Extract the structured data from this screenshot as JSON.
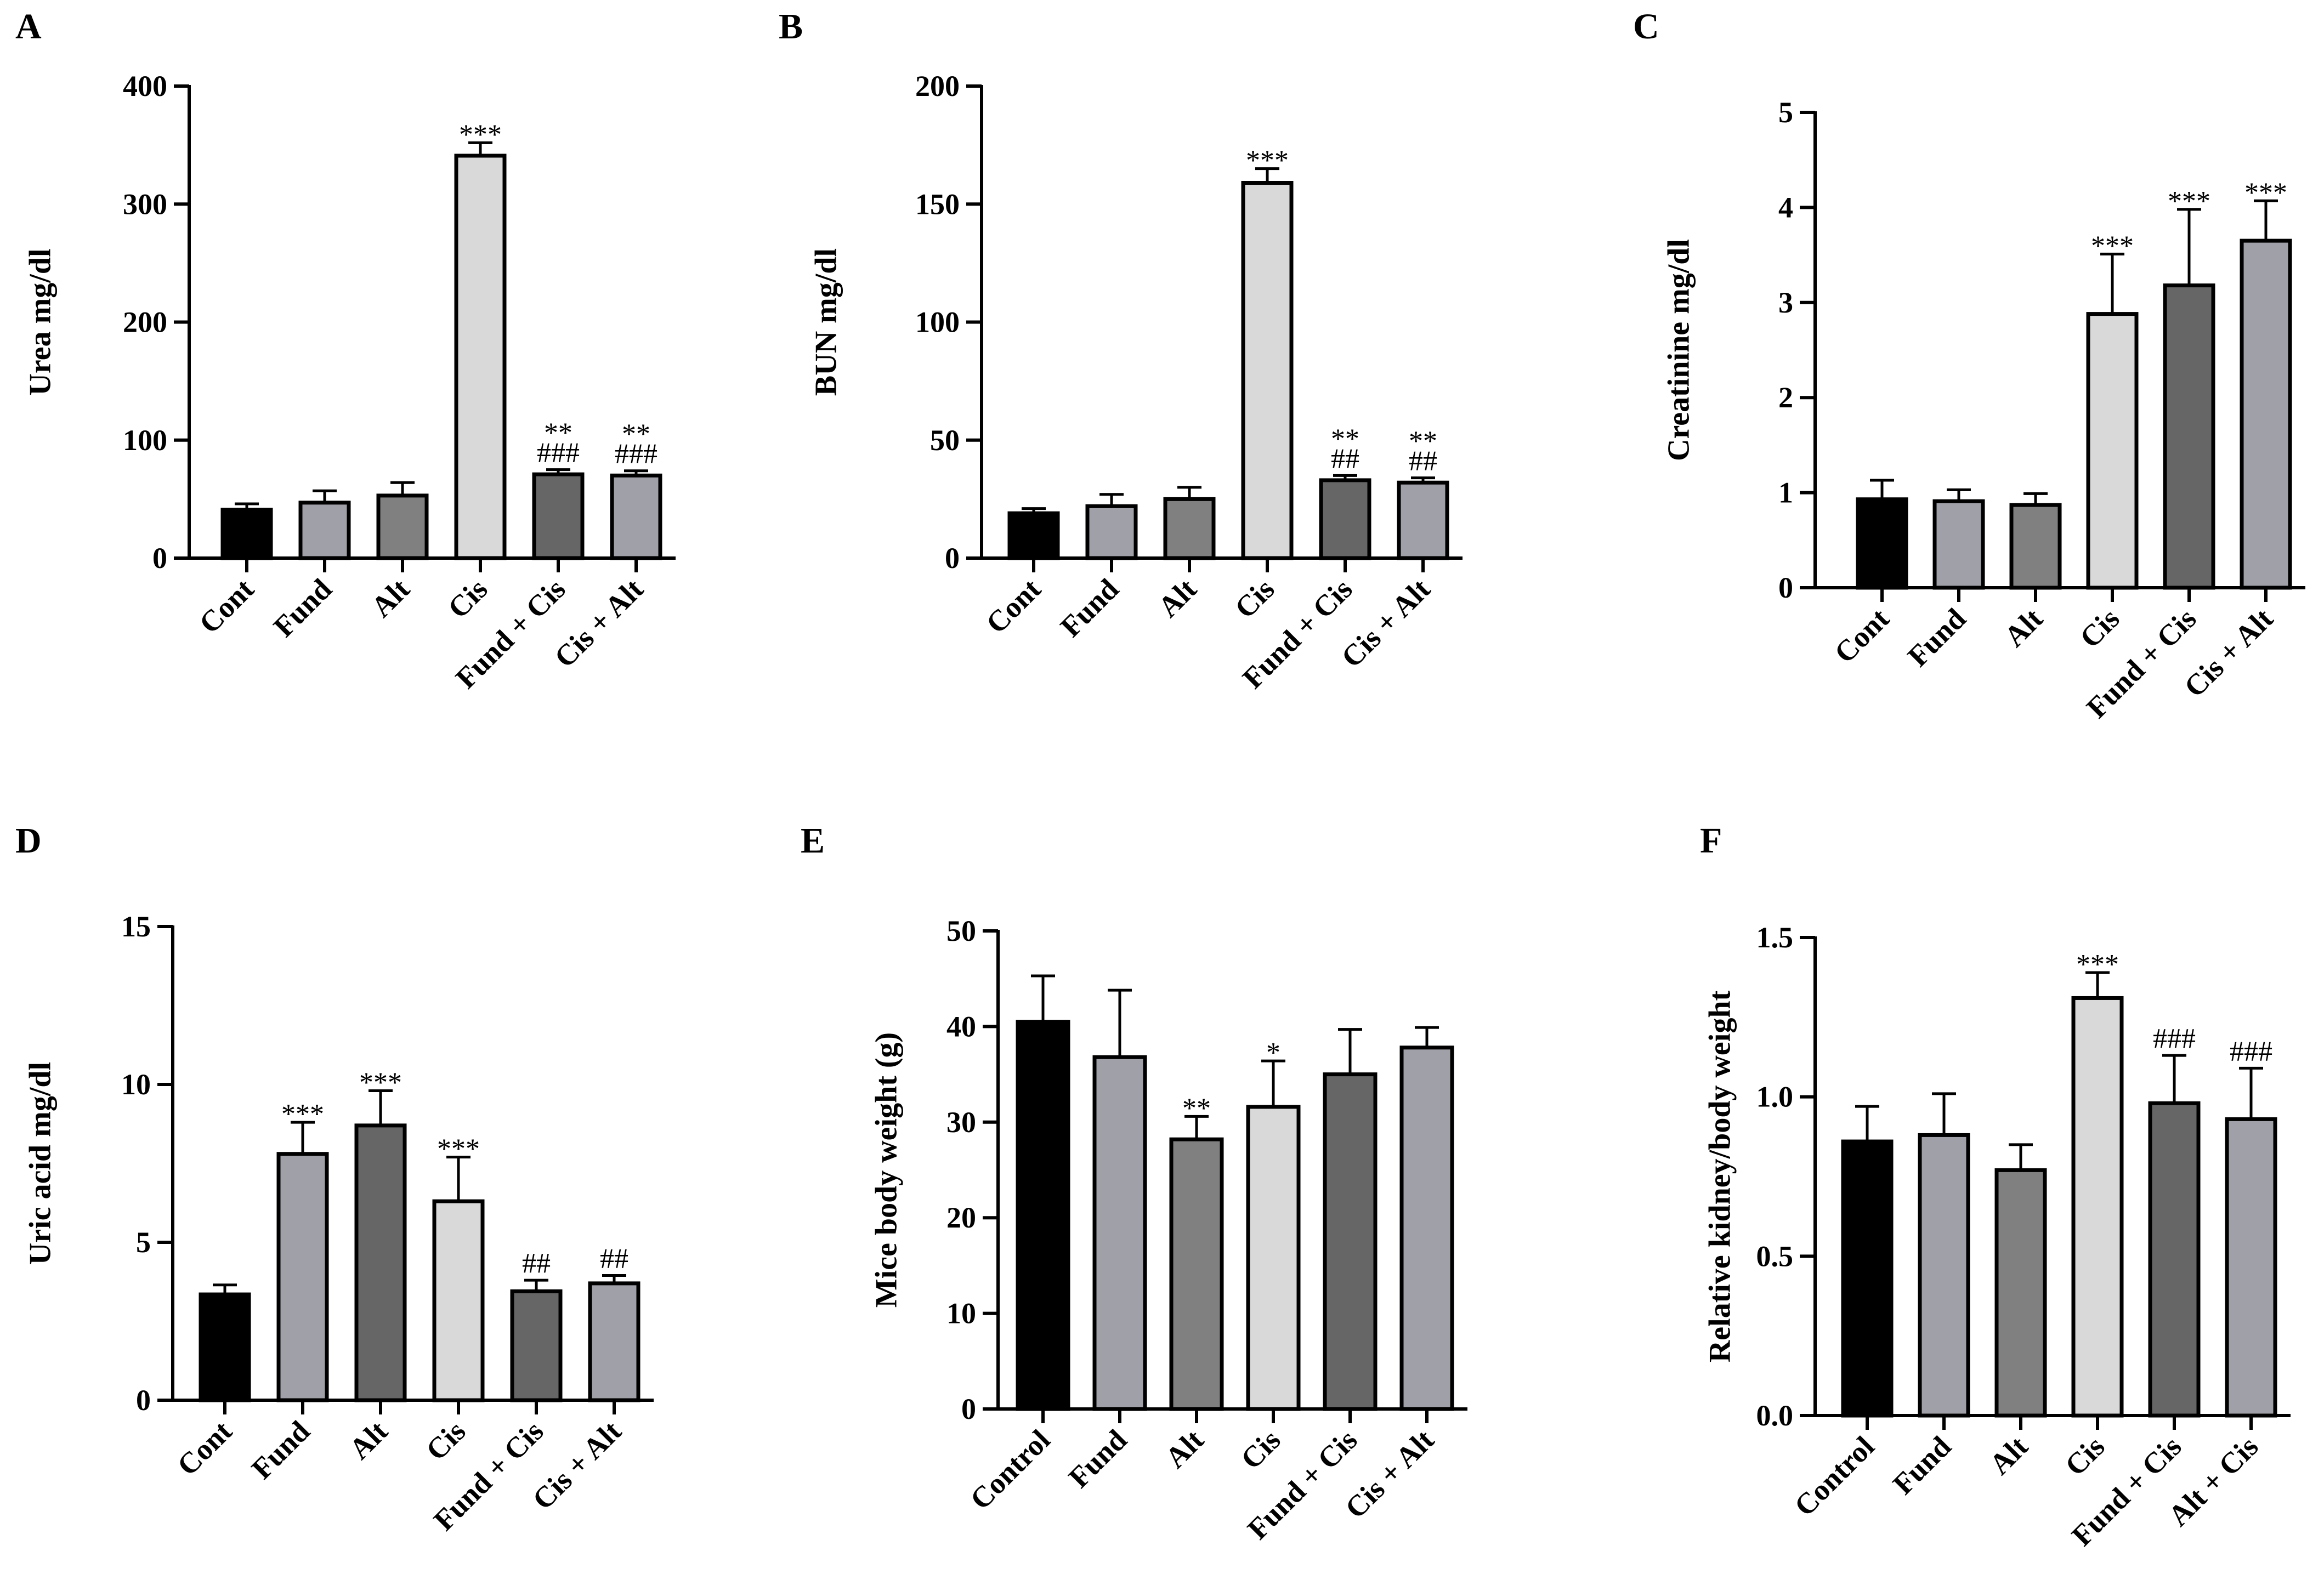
{
  "chart_data": [
    {
      "panel": "A",
      "type": "bar",
      "ylabel": "Urea mg/dl",
      "categories": [
        "Cont",
        "Fund",
        "Alt",
        "Cis",
        "Fund + Cis",
        "Cis + Alt"
      ],
      "values": [
        41,
        47,
        53,
        341,
        71,
        70
      ],
      "errors": [
        5,
        10,
        11,
        11,
        4,
        4
      ],
      "annotations": [
        [
          "",
          ""
        ],
        [
          "",
          ""
        ],
        [
          "",
          ""
        ],
        [
          "***",
          ""
        ],
        [
          "**",
          "###"
        ],
        [
          "**",
          "###"
        ]
      ],
      "ylim": [
        0,
        400
      ],
      "yticks": [
        "0",
        "100",
        "200",
        "300",
        "400"
      ],
      "colors": [
        "#000000",
        "#a0a0a8",
        "#808080",
        "#d9d9d9",
        "#666666",
        "#a0a0a8"
      ]
    },
    {
      "panel": "B",
      "type": "bar",
      "ylabel": "BUN mg/dl",
      "categories": [
        "Cont",
        "Fund",
        "Alt",
        "Cis",
        "Fund + Cis",
        "Cis + Alt"
      ],
      "values": [
        19,
        22,
        25,
        159,
        33,
        32
      ],
      "errors": [
        2,
        5,
        5,
        6,
        2,
        2
      ],
      "annotations": [
        [
          "",
          ""
        ],
        [
          "",
          ""
        ],
        [
          "",
          ""
        ],
        [
          "***",
          ""
        ],
        [
          "**",
          "##"
        ],
        [
          "**",
          "##"
        ]
      ],
      "ylim": [
        0,
        200
      ],
      "yticks": [
        "0",
        "50",
        "100",
        "150",
        "200"
      ],
      "colors": [
        "#000000",
        "#a0a0a8",
        "#808080",
        "#d9d9d9",
        "#666666",
        "#a0a0a8"
      ]
    },
    {
      "panel": "C",
      "type": "bar",
      "ylabel": "Creatinine mg/dl",
      "categories": [
        "Cont",
        "Fund",
        "Alt",
        "Cis",
        "Fund + Cis",
        "Cis + Alt"
      ],
      "values": [
        0.93,
        0.91,
        0.87,
        2.88,
        3.18,
        3.65
      ],
      "errors": [
        0.2,
        0.12,
        0.12,
        0.63,
        0.8,
        0.42
      ],
      "annotations": [
        [
          "",
          ""
        ],
        [
          "",
          ""
        ],
        [
          "",
          ""
        ],
        [
          "***",
          ""
        ],
        [
          "***",
          ""
        ],
        [
          "***",
          ""
        ]
      ],
      "ylim": [
        0,
        5
      ],
      "yticks": [
        "0",
        "1",
        "2",
        "3",
        "4",
        "5"
      ],
      "colors": [
        "#000000",
        "#a0a0a8",
        "#808080",
        "#d9d9d9",
        "#666666",
        "#a0a0a8"
      ]
    },
    {
      "panel": "D",
      "type": "bar",
      "ylabel": "Uric acid mg/dl",
      "categories": [
        "Cont",
        "Fund",
        "Alt",
        "Cis",
        "Fund + Cis",
        "Cis + Alt"
      ],
      "values": [
        3.35,
        7.8,
        8.7,
        6.3,
        3.45,
        3.7
      ],
      "errors": [
        0.3,
        1.0,
        1.1,
        1.4,
        0.35,
        0.25
      ],
      "annotations": [
        [
          "",
          ""
        ],
        [
          "***",
          ""
        ],
        [
          "***",
          ""
        ],
        [
          "***",
          ""
        ],
        [
          "##",
          ""
        ],
        [
          "##",
          ""
        ]
      ],
      "ylim": [
        0,
        15
      ],
      "yticks": [
        "0",
        "5",
        "10",
        "15"
      ],
      "colors": [
        "#000000",
        "#a0a0a8",
        "#666666",
        "#d9d9d9",
        "#666666",
        "#a0a0a8"
      ]
    },
    {
      "panel": "E",
      "type": "bar",
      "ylabel": "Mice body weight (g)",
      "categories": [
        "Control",
        "Fund",
        "Alt",
        "Cis",
        "Fund + Cis",
        "Cis + Alt"
      ],
      "values": [
        40.5,
        36.8,
        28.2,
        31.6,
        35,
        37.8
      ],
      "errors": [
        4.8,
        7,
        2.4,
        4.8,
        4.7,
        2.1
      ],
      "annotations": [
        [
          "",
          ""
        ],
        [
          "",
          ""
        ],
        [
          "**",
          ""
        ],
        [
          "*",
          ""
        ],
        [
          "",
          ""
        ],
        [
          "",
          ""
        ]
      ],
      "ylim": [
        0,
        50
      ],
      "yticks": [
        "0",
        "10",
        "20",
        "30",
        "40",
        "50"
      ],
      "colors": [
        "#000000",
        "#a0a0a8",
        "#808080",
        "#d9d9d9",
        "#666666",
        "#a0a0a8"
      ]
    },
    {
      "panel": "F",
      "type": "bar",
      "ylabel": "Relative kidney/body weight",
      "categories": [
        "Control",
        "Fund",
        "Alt",
        "Cis",
        "Fund + Cis",
        "Alt + Cis"
      ],
      "values": [
        0.86,
        0.88,
        0.77,
        1.31,
        0.98,
        0.93
      ],
      "errors": [
        0.11,
        0.13,
        0.08,
        0.08,
        0.15,
        0.16
      ],
      "annotations": [
        [
          "",
          ""
        ],
        [
          "",
          ""
        ],
        [
          "",
          ""
        ],
        [
          "***",
          ""
        ],
        [
          "###",
          ""
        ],
        [
          "###",
          ""
        ]
      ],
      "ylim": [
        0,
        1.5
      ],
      "yticks": [
        "0.0",
        "0.5",
        "1.0",
        "1.5"
      ],
      "colors": [
        "#000000",
        "#a0a0a8",
        "#808080",
        "#d9d9d9",
        "#666666",
        "#a0a0a8"
      ]
    }
  ]
}
